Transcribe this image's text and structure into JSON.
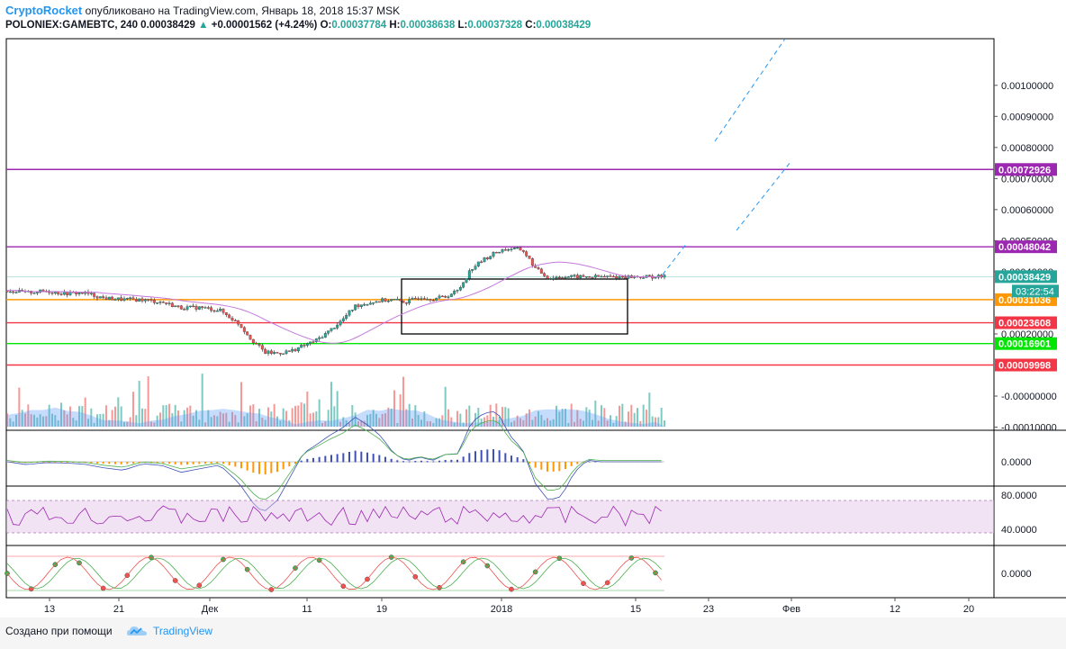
{
  "header": {
    "author": "CryptoRocket",
    "published_text": "опубликовано на TradingView.com, Январь 18, 2018 15:37 MSK",
    "symbol": "POLONIEX:GAMEBTC, 240",
    "last": "0.00038429",
    "change": "+0.00001562 (+4.24%)",
    "o_label": "O:",
    "o_value": "0.00037784",
    "h_label": "H:",
    "h_value": "0.00038638",
    "l_label": "L:",
    "l_value": "0.00037328",
    "c_label": "C:",
    "c_value": "0.00038429"
  },
  "footer": {
    "created_with": "Создано при помощи",
    "brand": "TradingView"
  },
  "chart_data": {
    "type": "candlestick",
    "x_tick_labels": [
      "13",
      "21",
      "Дек",
      "11",
      "19",
      "2018",
      "15",
      "23",
      "Фев",
      "12",
      "20"
    ],
    "y_tick_labels": [
      "0.00100000",
      "0.00090000",
      "0.00080000",
      "0.00070000",
      "0.00060000",
      "0.00050000",
      "0.00040000",
      "0.00020000",
      "-0.00000000",
      "-0.00010000"
    ],
    "ylim": [
      -0.00011,
      0.00115
    ],
    "price_series": {
      "t": [
        0,
        3,
        6,
        9,
        12,
        15,
        18,
        21,
        24,
        27,
        30,
        33,
        36,
        38,
        40,
        42,
        44,
        46,
        48,
        50,
        52,
        54,
        56,
        58,
        60,
        62,
        64,
        66,
        68,
        70,
        72,
        74,
        76,
        78,
        80,
        82,
        84,
        86,
        88,
        90,
        93,
        96,
        99,
        102
      ],
      "close": [
        0.00034,
        0.000333,
        0.000338,
        0.00033,
        0.000332,
        0.000315,
        0.000311,
        0.00031,
        0.000302,
        0.000284,
        0.000285,
        0.000276,
        0.000232,
        0.00018,
        0.00014,
        0.000138,
        0.000145,
        0.000162,
        0.00018,
        0.00021,
        0.000245,
        0.00029,
        0.0003,
        0.000308,
        0.00031,
        0.000302,
        0.00032,
        0.000313,
        0.00032,
        0.00034,
        0.00041,
        0.00044,
        0.000465,
        0.000475,
        0.00047,
        0.00041,
        0.00038,
        0.000384,
        0.000384,
        0.000384,
        0.000384,
        0.000384,
        0.000384,
        0.000384
      ]
    },
    "horizontal_levels": [
      {
        "value": 0.00072926,
        "label": "0.00072926",
        "color": "#9c27b0"
      },
      {
        "value": 0.00048042,
        "label": "0.00048042",
        "color": "#9c27b0"
      },
      {
        "value": 0.00038429,
        "label": "0.00038429",
        "color": "#26a69a"
      },
      {
        "value": 0.00031036,
        "label": "0.00031036",
        "color": "#ff9800"
      },
      {
        "value": 0.00023608,
        "label": "0.00023608",
        "color": "#f23645"
      },
      {
        "value": 0.00016901,
        "label": "0.00016901",
        "color": "#00e600"
      },
      {
        "value": 9.998e-05,
        "label": "0.00009998",
        "color": "#f23645"
      }
    ],
    "countdown": "03:22:54",
    "macd_axis_label": "0.0000",
    "rsi_axis_labels": [
      "80.0000",
      "40.0000"
    ],
    "stoch_axis_label": "0.0000",
    "colors": {
      "bull": "#26a69a",
      "bear": "#ef5350",
      "ma": "#c678dd",
      "rect": "#000000",
      "projection": "#2196f3"
    }
  }
}
